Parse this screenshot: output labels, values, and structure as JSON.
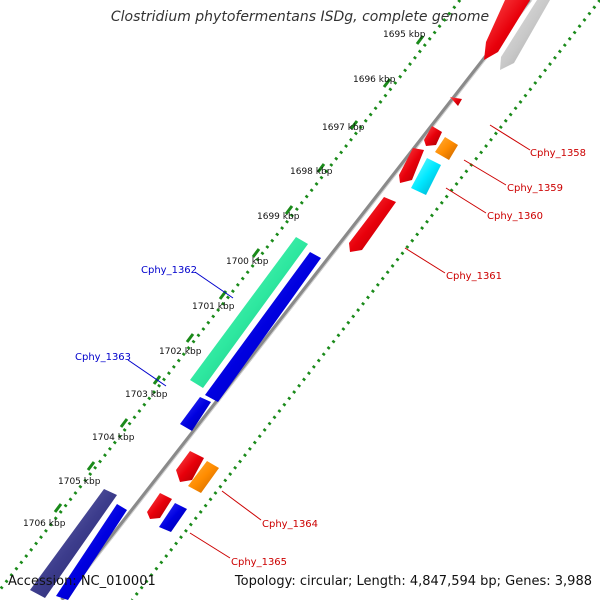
{
  "title": "Clostridium phytofermentans ISDg, complete genome",
  "footer": {
    "accession": "Accession: NC_010001",
    "topology": "Topology: circular; Length: 4,847,594 bp; Genes: 3,988"
  },
  "ruler": [
    {
      "label": "1695 kbp"
    },
    {
      "label": "1696 kbp"
    },
    {
      "label": "1697 kbp"
    },
    {
      "label": "1698 kbp"
    },
    {
      "label": "1699 kbp"
    },
    {
      "label": "1700 kbp"
    },
    {
      "label": "1701 kbp"
    },
    {
      "label": "1702 kbp"
    },
    {
      "label": "1703 kbp"
    },
    {
      "label": "1704 kbp"
    },
    {
      "label": "1705 kbp"
    },
    {
      "label": "1706 kbp"
    }
  ],
  "genes": [
    {
      "id": "Cphy_1358",
      "color": "#e8000b",
      "strand": "reverse"
    },
    {
      "id": "Cphy_1359",
      "color": "#e8000b",
      "strand": "reverse"
    },
    {
      "id": "Cphy_1360",
      "color": "#ff8c00",
      "strand": "reverse"
    },
    {
      "id": "Cphy_1361",
      "color": "#e8000b",
      "strand": "reverse"
    },
    {
      "id": "Cphy_1362",
      "color": "#2ee8a0",
      "strand": "forward"
    },
    {
      "id": "Cphy_1363",
      "color": "#0000e0",
      "strand": "forward"
    },
    {
      "id": "Cphy_1364",
      "color": "#e8000b",
      "strand": "reverse"
    },
    {
      "id": "Cphy_1365",
      "color": "#0000e0",
      "strand": "reverse"
    }
  ],
  "colors": {
    "backbone": "#8a8a8a",
    "ruler_ticks": "#1a8a1a",
    "label_red": "#cc0000",
    "label_blue": "#0000cc",
    "cds_red": "#e8000b",
    "cds_blue": "#0000e0",
    "cds_grey": "#c8c8c8",
    "cds_orange": "#ff8c00",
    "cds_cyan": "#00e8ff",
    "cds_green": "#2ee8a0",
    "cds_navy": "#3c3c8c"
  }
}
